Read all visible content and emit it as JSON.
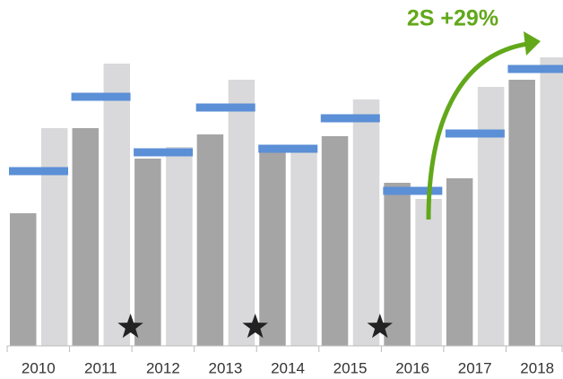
{
  "chart_data": {
    "type": "bar",
    "annotation": "2S +29%",
    "categories": [
      "2010",
      "2011",
      "2012",
      "2013",
      "2014",
      "2015",
      "2016",
      "2017",
      "2018"
    ],
    "series": [
      {
        "color": "#a5a5a5",
        "values": [
          148,
          243,
          209,
          236,
          216,
          234,
          182,
          187,
          297
        ]
      },
      {
        "color": "#d9d9db",
        "values": [
          243,
          315,
          222,
          297,
          216,
          275,
          164,
          289,
          322
        ]
      },
      {
        "color": "#5b8fd6",
        "style": "marker",
        "values": [
          195,
          278,
          216,
          266,
          220,
          254,
          173,
          237,
          309
        ]
      }
    ],
    "stars": [
      false,
      true,
      false,
      true,
      false,
      true,
      false,
      false,
      false
    ],
    "ylim": [
      0,
      340
    ]
  }
}
